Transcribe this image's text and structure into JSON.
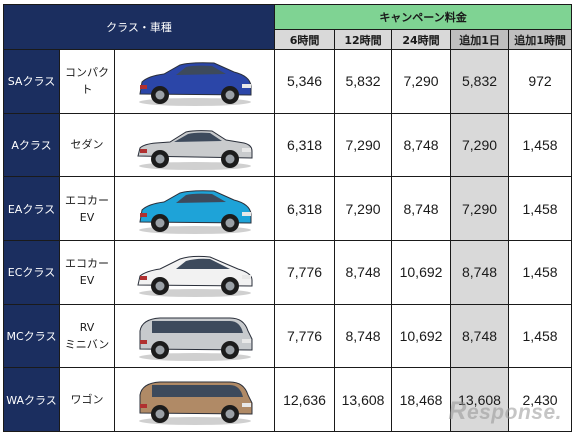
{
  "header": {
    "class_label": "クラス・車種",
    "campaign_label": "キャンペーン料金",
    "columns": [
      "6時間",
      "12時間",
      "24時間",
      "追加1日",
      "追加1時間"
    ]
  },
  "rows": [
    {
      "class": "SAクラス",
      "type": [
        "コンパクト"
      ],
      "car_icon": "hatchback-car-icon",
      "car_color": "#2b46a8",
      "prices": [
        "5,346",
        "5,832",
        "7,290",
        "5,832",
        "972"
      ]
    },
    {
      "class": "Aクラス",
      "type": [
        "セダン"
      ],
      "car_icon": "sedan-car-icon",
      "car_color": "#c9cbcd",
      "prices": [
        "6,318",
        "7,290",
        "8,748",
        "7,290",
        "1,458"
      ]
    },
    {
      "class": "EAクラス",
      "type": [
        "エコカー",
        "EV"
      ],
      "car_icon": "hatchback-car-icon",
      "car_color": "#1ea3d8",
      "prices": [
        "6,318",
        "7,290",
        "8,748",
        "7,290",
        "1,458"
      ]
    },
    {
      "class": "ECクラス",
      "type": [
        "エコカー",
        "EV"
      ],
      "car_icon": "hybrid-car-icon",
      "car_color": "#f2f2f2",
      "prices": [
        "7,776",
        "8,748",
        "10,692",
        "8,748",
        "1,458"
      ]
    },
    {
      "class": "MCクラス",
      "type": [
        "RV",
        "ミニバン"
      ],
      "car_icon": "minivan-car-icon",
      "car_color": "#c7cacd",
      "prices": [
        "7,776",
        "8,748",
        "10,692",
        "8,748",
        "1,458"
      ]
    },
    {
      "class": "WAクラス",
      "type": [
        "ワゴン"
      ],
      "car_icon": "wagon-car-icon",
      "car_color": "#b08a66",
      "prices": [
        "12,636",
        "13,608",
        "18,468",
        "13,608",
        "2,430"
      ]
    }
  ],
  "watermark": {
    "initial": "R",
    "rest": "esponse."
  },
  "colors": {
    "navy": "#1b2e5f",
    "green": "#7fd393",
    "gray": "#d9d9d9",
    "dark_gray": "#bfbfbf"
  }
}
